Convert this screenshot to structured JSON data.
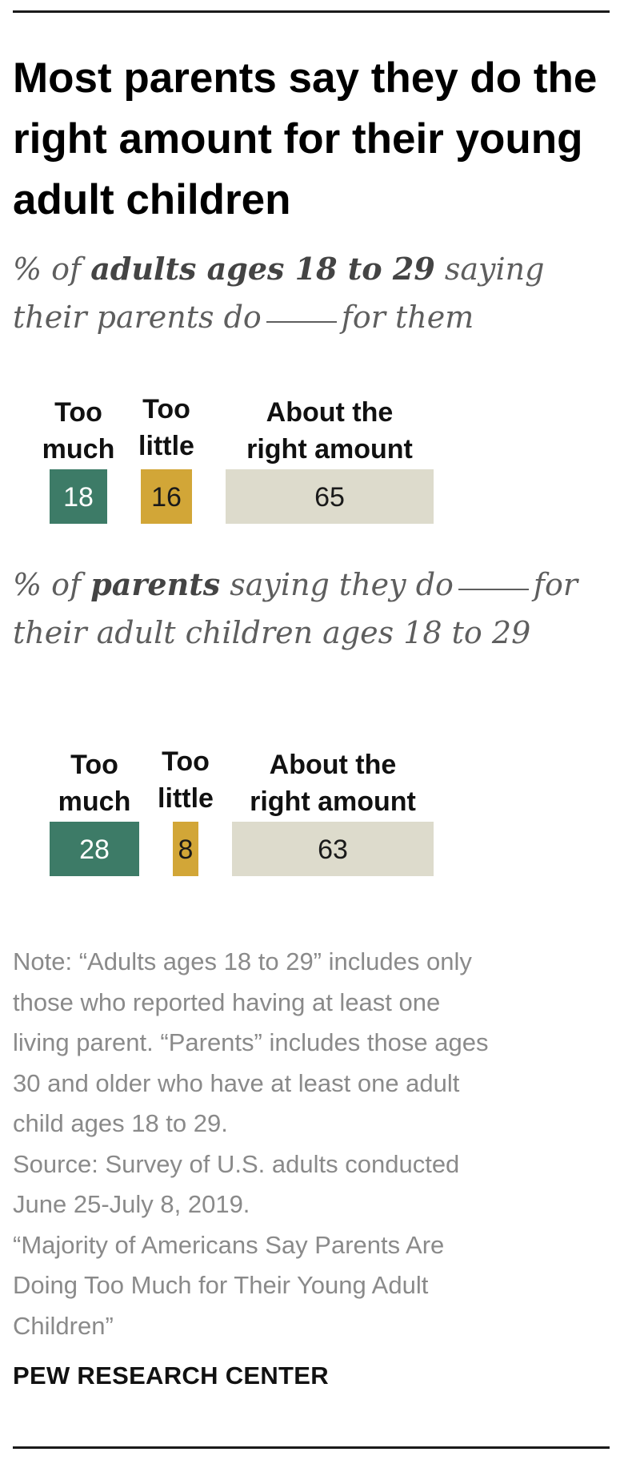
{
  "title": "Most parents say they do the right amount for their young adult children",
  "subtitle1": {
    "prefix": "% of ",
    "bold": "adults ages 18 to 29",
    "middle": " saying their parents do",
    "suffix": "for them"
  },
  "subtitle2": {
    "prefix": "% of ",
    "bold": "parents",
    "middle": " saying they do",
    "suffix": "for their adult children ages 18 to 29"
  },
  "colors": {
    "too_much": "#3d7b67",
    "too_little": "#d2a637",
    "right_amount": "#dddbcc"
  },
  "chart_data": [
    {
      "type": "bar",
      "orientation": "horizontal-stacked",
      "categories": [
        "Too much",
        "Too little",
        "About the right amount"
      ],
      "values": [
        18,
        16,
        65
      ],
      "title": "",
      "xlabel": "",
      "ylabel": ""
    },
    {
      "type": "bar",
      "orientation": "horizontal-stacked",
      "categories": [
        "Too much",
        "Too little",
        "About the right amount"
      ],
      "values": [
        28,
        8,
        63
      ],
      "title": "",
      "xlabel": "",
      "ylabel": ""
    }
  ],
  "note": {
    "lines": [
      "Note: “Adults ages 18 to 29” includes only",
      "those who reported having at least one",
      "living parent. “Parents” includes those ages",
      "30 and older who have at least one adult",
      "child ages 18 to 29.",
      "Source: Survey of U.S. adults conducted",
      "June 25-July 8, 2019.",
      "“Majority of Americans Say Parents Are",
      "Doing Too Much for Their Young Adult",
      "Children”"
    ]
  },
  "footer": "PEW RESEARCH CENTER"
}
